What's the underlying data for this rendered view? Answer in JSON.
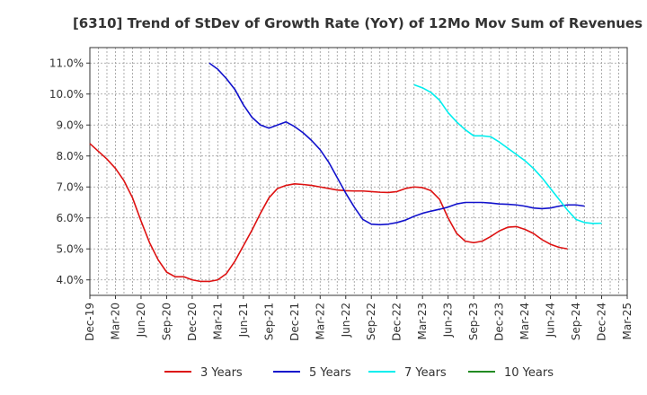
{
  "chart_data": {
    "type": "line",
    "title": "[6310]  Trend of StDev of Growth Rate (YoY) of 12Mo Mov Sum of Revenues",
    "xlabel": "",
    "ylabel": "",
    "ylim": [
      3.5,
      11.5
    ],
    "y_ticks": [
      "4.0%",
      "5.0%",
      "6.0%",
      "7.0%",
      "8.0%",
      "9.0%",
      "10.0%",
      "11.0%"
    ],
    "y_tick_values": [
      4,
      5,
      6,
      7,
      8,
      9,
      10,
      11
    ],
    "x_ticks": [
      "Dec-19",
      "Mar-20",
      "Jun-20",
      "Sep-20",
      "Dec-20",
      "Mar-21",
      "Jun-21",
      "Sep-21",
      "Dec-21",
      "Mar-22",
      "Jun-22",
      "Sep-22",
      "Dec-22",
      "Mar-23",
      "Jun-23",
      "Sep-23",
      "Dec-23",
      "Mar-24",
      "Jun-24",
      "Sep-24",
      "Dec-24",
      "Mar-25"
    ],
    "grid": true,
    "legend_position": "bottom",
    "series": [
      {
        "name": "3 Years",
        "color": "#dd1111",
        "start_index": 0,
        "values": [
          8.4,
          8.15,
          7.9,
          7.6,
          7.2,
          6.65,
          5.9,
          5.2,
          4.65,
          4.25,
          4.1,
          4.1,
          4.0,
          3.95,
          3.95,
          4.0,
          4.2,
          4.6,
          5.1,
          5.6,
          6.15,
          6.65,
          6.95,
          7.05,
          7.1,
          7.08,
          7.05,
          7.0,
          6.95,
          6.9,
          6.88,
          6.87,
          6.87,
          6.85,
          6.83,
          6.82,
          6.85,
          6.95,
          7.0,
          6.98,
          6.88,
          6.6,
          6.0,
          5.5,
          5.25,
          5.2,
          5.25,
          5.4,
          5.58,
          5.7,
          5.72,
          5.63,
          5.5,
          5.3,
          5.15,
          5.05,
          5.0
        ]
      },
      {
        "name": "5 Years",
        "color": "#1111cc",
        "start_index": 14,
        "values": [
          11.0,
          10.8,
          10.5,
          10.15,
          9.65,
          9.25,
          9.0,
          8.9,
          9.0,
          9.1,
          8.95,
          8.75,
          8.5,
          8.2,
          7.8,
          7.3,
          6.8,
          6.35,
          5.95,
          5.8,
          5.78,
          5.8,
          5.85,
          5.93,
          6.05,
          6.15,
          6.22,
          6.28,
          6.35,
          6.45,
          6.5,
          6.5,
          6.5,
          6.48,
          6.45,
          6.44,
          6.42,
          6.38,
          6.32,
          6.3,
          6.32,
          6.38,
          6.42,
          6.42,
          6.38
        ]
      },
      {
        "name": "7 Years",
        "color": "#00eeee",
        "start_index": 38,
        "values": [
          10.3,
          10.2,
          10.05,
          9.8,
          9.4,
          9.1,
          8.85,
          8.65,
          8.65,
          8.62,
          8.45,
          8.25,
          8.05,
          7.85,
          7.6,
          7.3,
          6.95,
          6.6,
          6.25,
          5.95,
          5.85,
          5.82,
          5.83
        ]
      },
      {
        "name": "10 Years",
        "color": "#228b22",
        "start_index": 0,
        "values": []
      }
    ]
  }
}
